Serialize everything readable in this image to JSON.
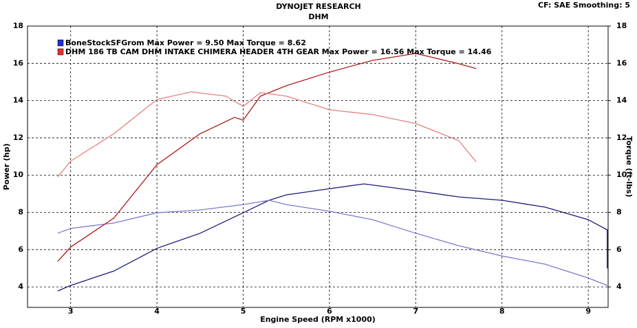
{
  "chart_data": {
    "type": "line",
    "title": "DYNOJET RESEARCH",
    "subtitle": "DHM",
    "corner_note": "CF: SAE  Smoothing: 5",
    "xlabel": "Engine Speed (RPM x1000)",
    "ylabel": "Power (hp)",
    "y2label": "Torque (ft-lbs)",
    "xlim": [
      2.5,
      9.23
    ],
    "ylim": [
      2.9,
      18
    ],
    "y2lim": [
      2.9,
      18
    ],
    "xticks": [
      3,
      4,
      5,
      6,
      7,
      8,
      9
    ],
    "yticks": [
      4,
      6,
      8,
      10,
      12,
      14,
      16,
      18
    ],
    "y2ticks": [
      4,
      6,
      8,
      10,
      12,
      14,
      16,
      18
    ],
    "grid": true,
    "legend": [
      {
        "text": "BoneStockSFGrom Max Power = 9.50     Max Torque = 8.62",
        "color": "#2030d0"
      },
      {
        "text": "DHM 186 TB CAM DHM INTAKE CHIMERA HEADER 4TH GEAR Max Power = 16.56     Max Torque = 14.46",
        "color": "#e03030"
      }
    ],
    "series": [
      {
        "color": "#1a1a78",
        "axis": "y",
        "x": [
          2.85,
          3.0,
          3.5,
          4.0,
          4.5,
          5.0,
          5.3,
          5.5,
          6.0,
          6.4,
          7.0,
          7.5,
          8.0,
          8.5,
          9.0,
          9.22,
          9.22
        ],
        "values": [
          3.78,
          4.08,
          4.85,
          6.07,
          6.88,
          7.98,
          8.65,
          8.94,
          9.27,
          9.53,
          9.16,
          8.83,
          8.65,
          8.28,
          7.61,
          7.06,
          5.0
        ]
      },
      {
        "color": "#7a7ad0",
        "axis": "y2",
        "x": [
          2.85,
          3.0,
          3.5,
          4.0,
          4.5,
          5.0,
          5.3,
          5.5,
          6.0,
          6.5,
          7.0,
          7.5,
          8.0,
          8.5,
          9.0,
          9.22
        ],
        "values": [
          6.88,
          7.14,
          7.43,
          7.98,
          8.13,
          8.42,
          8.65,
          8.42,
          8.06,
          7.61,
          6.88,
          6.21,
          5.66,
          5.22,
          4.48,
          4.08
        ]
      },
      {
        "color": "#b01818",
        "axis": "y",
        "x": [
          2.85,
          3.0,
          3.5,
          4.0,
          4.5,
          4.9,
          5.0,
          5.2,
          5.5,
          6.0,
          6.5,
          7.0,
          7.5,
          7.7
        ],
        "values": [
          5.37,
          6.14,
          7.69,
          10.56,
          12.22,
          13.1,
          12.95,
          14.24,
          14.8,
          15.53,
          16.16,
          16.53,
          15.98,
          15.72
        ]
      },
      {
        "color": "#e88080",
        "axis": "y2",
        "x": [
          2.85,
          3.0,
          3.5,
          4.0,
          4.4,
          4.8,
          5.0,
          5.2,
          5.5,
          6.0,
          6.5,
          7.0,
          7.5,
          7.7
        ],
        "values": [
          9.9,
          10.75,
          12.22,
          14.06,
          14.47,
          14.24,
          13.69,
          14.43,
          14.24,
          13.51,
          13.25,
          12.77,
          11.85,
          10.71
        ]
      }
    ]
  }
}
